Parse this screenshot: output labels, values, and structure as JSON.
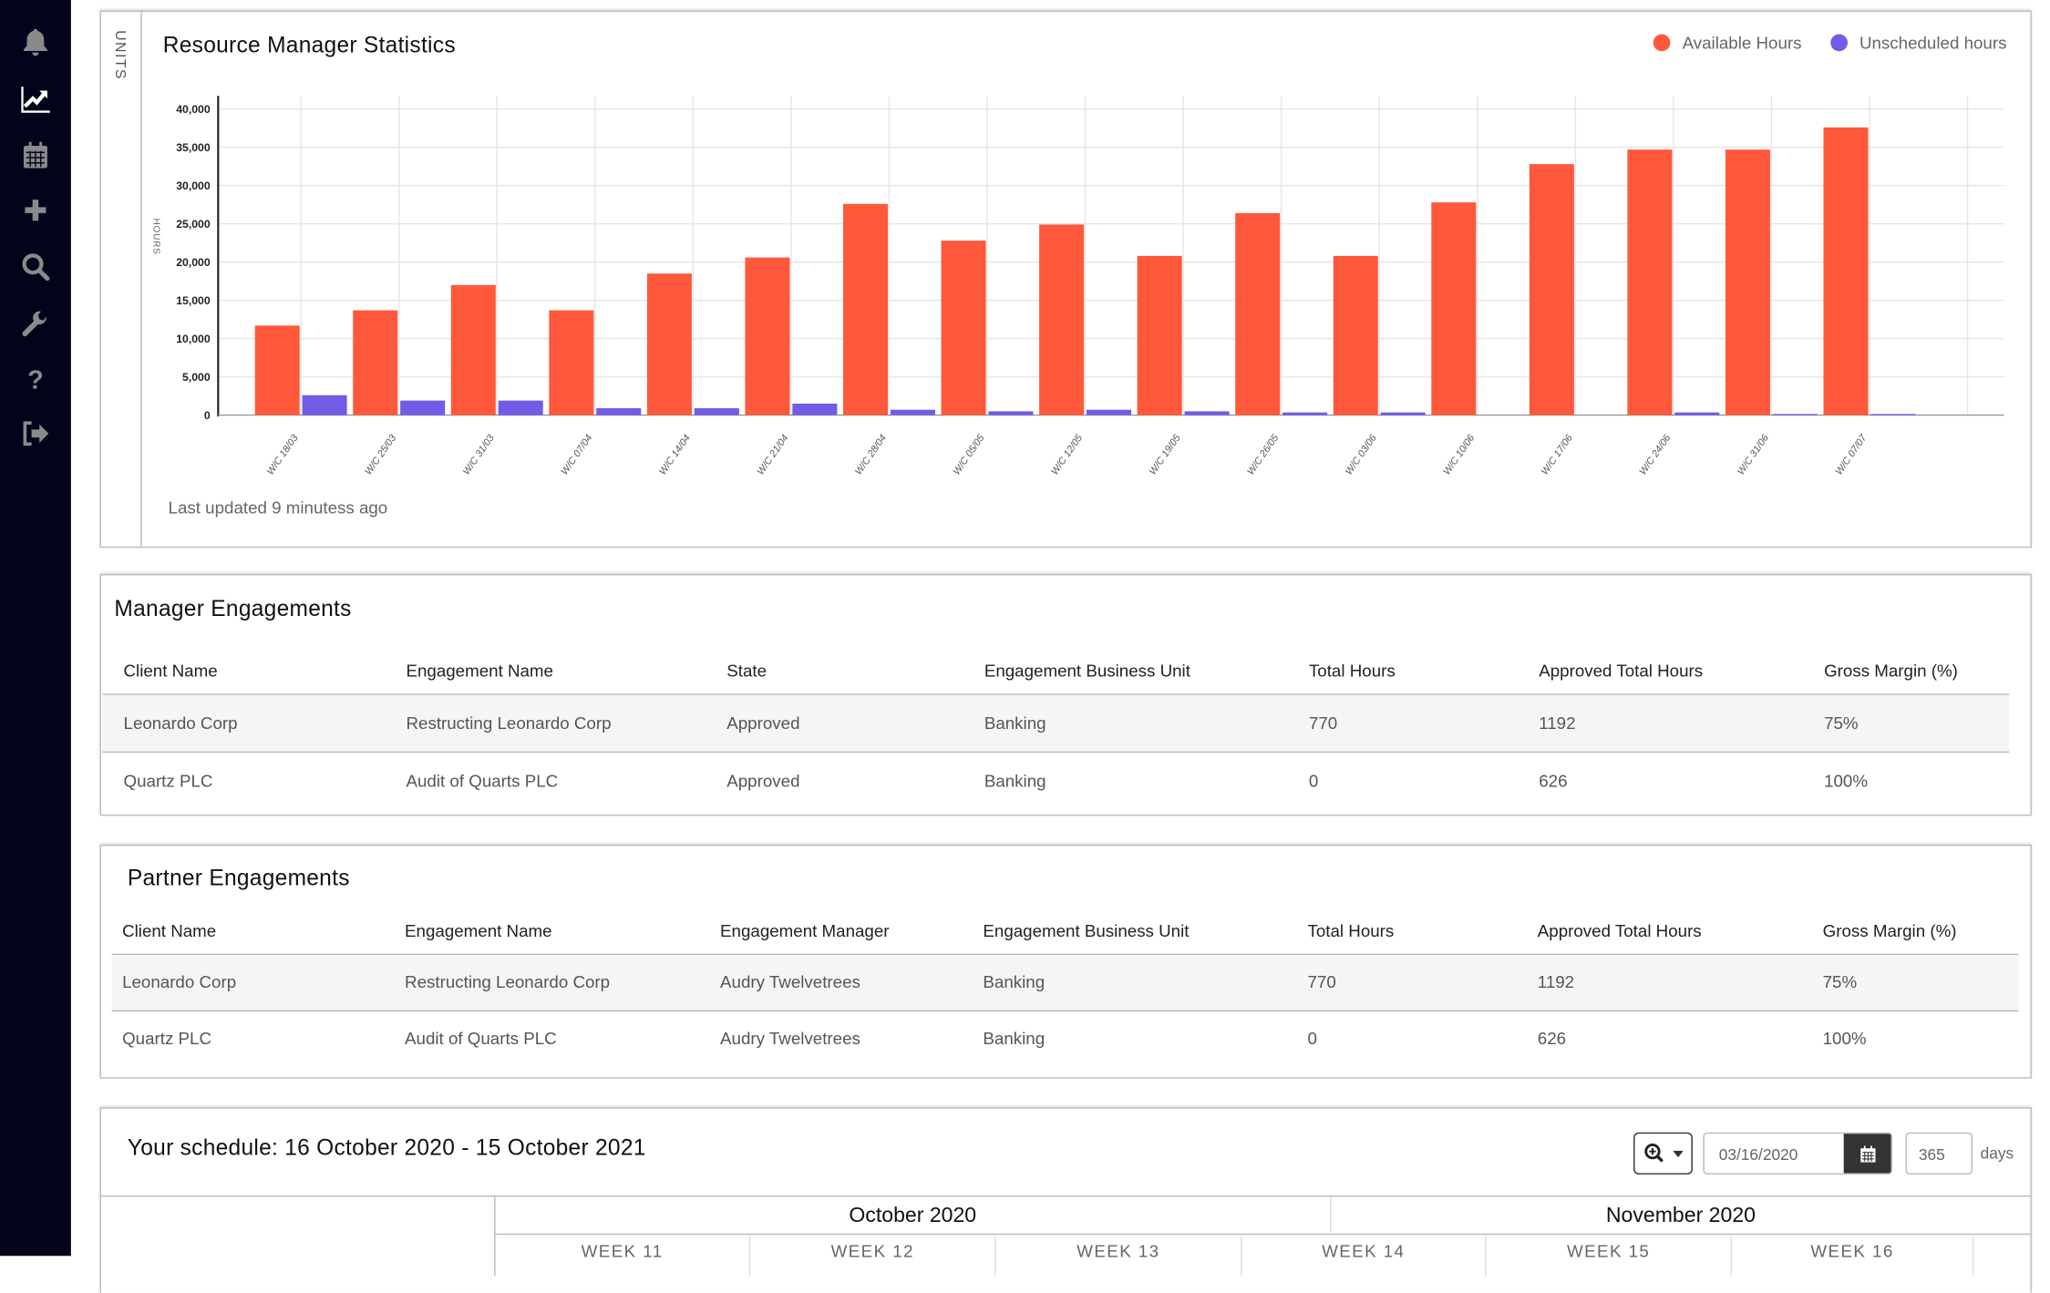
{
  "sidebar": {
    "items": [
      {
        "icon": "bell-icon",
        "active": false
      },
      {
        "icon": "chart-line-icon",
        "active": true
      },
      {
        "icon": "calendar-icon",
        "active": false
      },
      {
        "icon": "plus-icon",
        "active": false
      },
      {
        "icon": "search-icon",
        "active": false
      },
      {
        "icon": "wrench-icon",
        "active": false
      },
      {
        "icon": "question-icon",
        "active": false
      },
      {
        "icon": "sign-out-icon",
        "active": false
      }
    ]
  },
  "stats": {
    "units_label": "UNITS",
    "title": "Resource Manager Statistics",
    "last_updated": "Last updated 9 minutess ago"
  },
  "chart_data": {
    "type": "bar",
    "title": "Resource Manager Statistics",
    "ylabel": "HOURS",
    "xlabel": "",
    "ylim": [
      0,
      40000
    ],
    "yticks": [
      "0",
      "5,000",
      "10,000",
      "15,000",
      "20,000",
      "25,000",
      "30,000",
      "35,000",
      "40,000"
    ],
    "grid": true,
    "legend_position": "top-right",
    "categories": [
      "W/C 18/03",
      "W/C 25/03",
      "W/C 31/03",
      "W/C 07/04",
      "W/C 14/04",
      "W/C 21/04",
      "W/C 28/04",
      "W/C 05/05",
      "W/C 12/05",
      "W/C 19/05",
      "W/C 26/05",
      "W/C 03/06",
      "W/C 10/06",
      "W/C 17/06",
      "W/C 24/06",
      "W/C 31/06",
      "W/C 07/07"
    ],
    "series": [
      {
        "name": "Available Hours",
        "color": "#ff583b",
        "values": [
          11700,
          13700,
          17000,
          13700,
          18500,
          20600,
          27600,
          22800,
          24900,
          20800,
          26400,
          20800,
          27800,
          32800,
          34700,
          34700,
          37600
        ]
      },
      {
        "name": "Unscheduled hours",
        "color": "#705ce6",
        "values": [
          2600,
          1900,
          1900,
          900,
          900,
          1500,
          700,
          500,
          700,
          500,
          350,
          350,
          0,
          0,
          350,
          150,
          150
        ]
      }
    ]
  },
  "manager": {
    "title": "Manager Engagements",
    "headers": [
      "Client Name",
      "Engagement Name",
      "State",
      "Engagement Business Unit",
      "Total Hours",
      "Approved Total Hours",
      "Gross Margin (%)"
    ],
    "rows": [
      [
        "Leonardo Corp",
        "Restructing Leonardo Corp",
        "Approved",
        "Banking",
        "770",
        "1192",
        "75%"
      ],
      [
        "Quartz PLC",
        "Audit of Quarts PLC",
        "Approved",
        "Banking",
        "0",
        "626",
        "100%"
      ]
    ]
  },
  "partner": {
    "title": "Partner Engagements",
    "headers": [
      "Client Name",
      "Engagement Name",
      "Engagement Manager",
      "Engagement Business Unit",
      "Total Hours",
      "Approved Total Hours",
      "Gross Margin (%)"
    ],
    "rows": [
      [
        "Leonardo Corp",
        "Restructing Leonardo Corp",
        "Audry Twelvetrees",
        "Banking",
        "770",
        "1192",
        "75%"
      ],
      [
        "Quartz PLC",
        "Audit of Quarts PLC",
        "Audry Twelvetrees",
        "Banking",
        "0",
        "626",
        "100%"
      ]
    ]
  },
  "schedule": {
    "title": "Your schedule: 16 October 2020 - 15 October 2021",
    "zoom_icon": "zoom-in-icon",
    "date_value": "03/16/2020",
    "days_value": "365",
    "days_label": "days",
    "months": [
      "October 2020",
      "November 2020"
    ],
    "weeks": [
      "WEEK 11",
      "WEEK 12",
      "WEEK 13",
      "WEEK 14",
      "WEEK 15",
      "WEEK 16"
    ]
  }
}
